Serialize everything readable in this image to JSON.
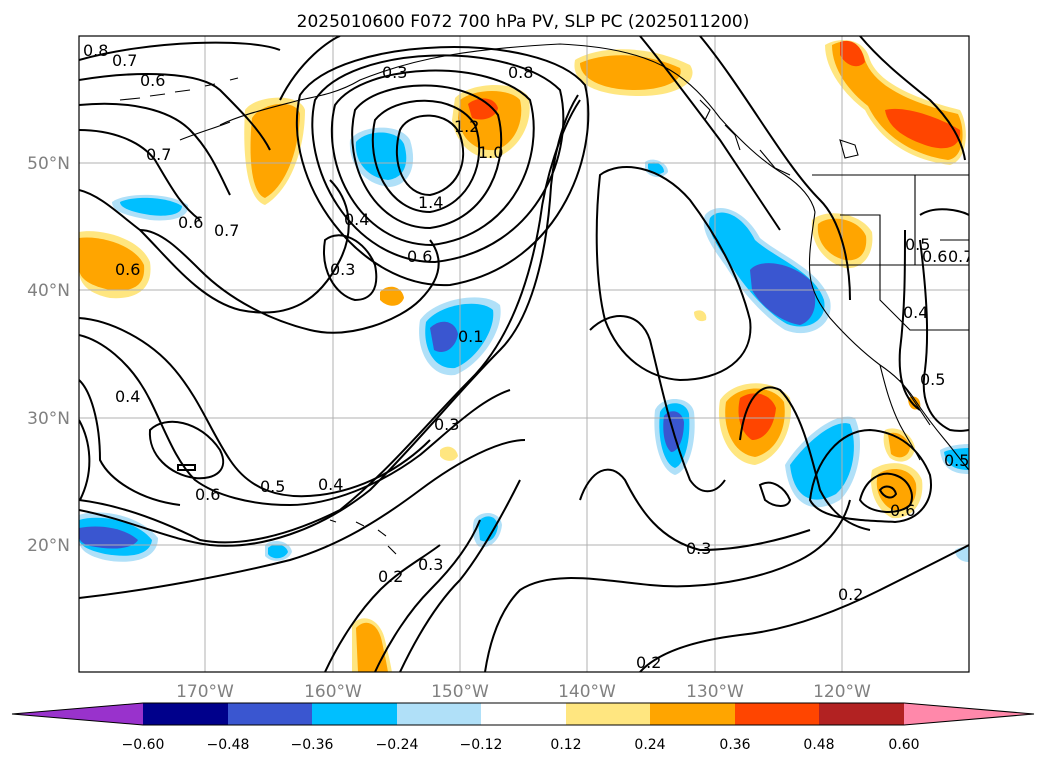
{
  "title": "2025010600 F072 700 hPa PV, SLP PC (2025011200)",
  "lon_labels": [
    "170°W",
    "160°W",
    "150°W",
    "140°W",
    "130°W",
    "120°W"
  ],
  "lat_labels": [
    "50°N",
    "40°N",
    "30°N",
    "20°N"
  ],
  "colorbar": {
    "ticks": [
      "−0.60",
      "−0.48",
      "−0.36",
      "−0.24",
      "−0.12",
      "0.12",
      "0.24",
      "0.36",
      "0.48",
      "0.60"
    ],
    "colors": {
      "under": "#9932cc",
      "c1": "#00008b",
      "c2": "#3a56d0",
      "c3": "#00bfff",
      "c4": "#b0e0f8",
      "c5": "#ffffff",
      "c6": "#ffe680",
      "c7": "#ffa500",
      "c8": "#ff4500",
      "c9": "#b22222",
      "over": "#ff88aa"
    }
  },
  "contour_labels": [
    "0.8",
    "0.7",
    "0.6",
    "0.7",
    "0.6",
    "0.7",
    "0.6",
    "0.4",
    "0.3",
    "0.6",
    "1.4",
    "1.2",
    "1.0",
    "0.8",
    "0.3",
    "0.1",
    "0.3",
    "0.4",
    "0.5",
    "0.6",
    "0.4",
    "0.2",
    "0.3",
    "0.3",
    "0.2",
    "0.2",
    "0.5",
    "0.6",
    "0.7",
    "0.4",
    "0.5",
    "0.6",
    "0.5"
  ]
}
